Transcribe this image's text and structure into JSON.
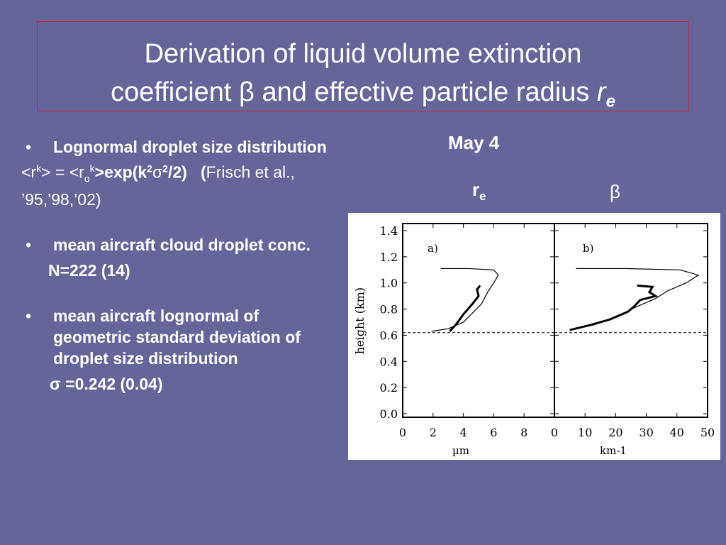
{
  "title": {
    "line1": "Derivation of liquid volume extinction",
    "line2_prefix": "coefficient ",
    "beta_symbol": "β",
    "line2_mid": " and effective particle radius ",
    "r": "r",
    "e": "e"
  },
  "bullets": [
    {
      "text": "Lognormal droplet size distribution"
    },
    {
      "text": "mean aircraft cloud droplet conc."
    },
    {
      "text": "mean aircraft lognormal of geometric standard deviation  of droplet size distribution"
    }
  ],
  "bullet_char": "•",
  "formula": {
    "lhs_open": "<r",
    "k": "k",
    "lhs_close": "> = <r",
    "o": "o",
    "k2": "k",
    "rhs_close": ">",
    "exp": "exp(k",
    "two": "2",
    "sigma": "σ",
    "two2": "2",
    "div": "/2)",
    "cite_paren": "(",
    "cite": "Frisch et al., ’95,’98,’02)"
  },
  "conc_value": "N=222  (14)",
  "sigma_value": {
    "symbol": "σ =",
    "value": "0.242 (0.04)"
  },
  "figure": {
    "date": "May 4",
    "re_label": "r",
    "re_sub": "e",
    "beta_label": "β"
  },
  "chart_data": {
    "type": "line",
    "ylabel": "height (km)",
    "ylim": [
      0,
      1.4
    ],
    "yticks": [
      "0.0",
      "0.2",
      "0.4",
      "0.6",
      "0.8",
      "1.0",
      "1.2",
      "1.4"
    ],
    "cloud_base_km": 0.62,
    "panels": [
      {
        "label": "a)",
        "xlabel": "µm",
        "xlim": [
          0,
          10
        ],
        "xticks": [
          "0",
          "2",
          "4",
          "6",
          "8"
        ],
        "series": [
          {
            "style": "thin",
            "points": [
              [
                2.5,
                1.11
              ],
              [
                4.3,
                1.11
              ],
              [
                6.0,
                1.1
              ],
              [
                6.3,
                1.06
              ],
              [
                6.0,
                1.0
              ],
              [
                5.6,
                0.93
              ],
              [
                5.2,
                0.84
              ],
              [
                4.6,
                0.77
              ],
              [
                4.0,
                0.7
              ],
              [
                3.0,
                0.65
              ],
              [
                1.9,
                0.63
              ]
            ]
          },
          {
            "style": "thick",
            "points": [
              [
                5.1,
                0.98
              ],
              [
                4.9,
                0.95
              ],
              [
                5.0,
                0.9
              ],
              [
                4.6,
                0.84
              ],
              [
                4.0,
                0.76
              ],
              [
                3.5,
                0.68
              ],
              [
                3.1,
                0.63
              ]
            ]
          }
        ]
      },
      {
        "label": "b)",
        "xlabel": "km-1",
        "xlim": [
          0,
          50
        ],
        "xticks": [
          "0",
          "10",
          "20",
          "30",
          "40",
          "50"
        ],
        "series": [
          {
            "style": "thin",
            "points": [
              [
                7,
                1.11
              ],
              [
                23,
                1.11
              ],
              [
                41,
                1.1
              ],
              [
                47,
                1.06
              ],
              [
                43,
                1.0
              ],
              [
                37,
                0.94
              ],
              [
                33,
                0.88
              ],
              [
                27,
                0.82
              ],
              [
                20,
                0.74
              ],
              [
                13,
                0.68
              ],
              [
                5,
                0.64
              ]
            ]
          },
          {
            "style": "thick",
            "points": [
              [
                27,
                0.98
              ],
              [
                32,
                0.97
              ],
              [
                31,
                0.93
              ],
              [
                33,
                0.9
              ],
              [
                28,
                0.87
              ],
              [
                26,
                0.82
              ],
              [
                24,
                0.78
              ],
              [
                18,
                0.72
              ],
              [
                12,
                0.68
              ],
              [
                5,
                0.64
              ]
            ]
          }
        ]
      }
    ]
  }
}
